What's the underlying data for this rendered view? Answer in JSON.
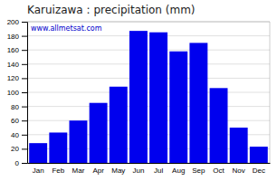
{
  "chart_data": {
    "type": "bar",
    "title": "Karuizawa : precipitation (mm)",
    "categories": [
      "Jan",
      "Feb",
      "Mar",
      "Apr",
      "May",
      "Jun",
      "Jul",
      "Aug",
      "Sep",
      "Oct",
      "Nov",
      "Dec"
    ],
    "values": [
      28,
      43,
      60,
      85,
      108,
      187,
      185,
      158,
      170,
      106,
      50,
      23
    ],
    "color": "#0000ee",
    "ylim": [
      0,
      200
    ],
    "yticks": [
      0,
      20,
      40,
      60,
      80,
      100,
      120,
      140,
      160,
      180,
      200
    ],
    "grid": true,
    "annotations": [
      "www.allmetsat.com"
    ]
  }
}
